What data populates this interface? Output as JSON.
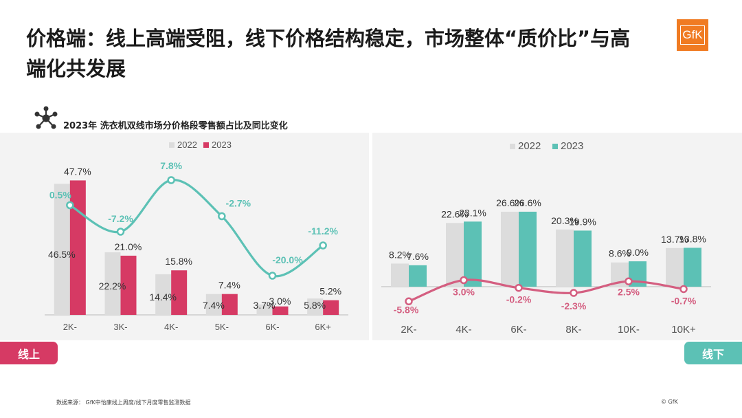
{
  "page": {
    "title": "价格端：线上高端受阻，线下价格结构稳定，市场整体“质价比”与高端化共发展",
    "subtitle": "2023年 洗衣机双线市场分价格段零售额占比及同比变化",
    "logo_text": "GfK",
    "source": "数据来源：  GfK中怡康线上周度/线下月度零售监测数据",
    "copyright": "© GfK",
    "online_tag": "线上",
    "offline_tag": "线下",
    "icon": "network-icon"
  },
  "chart_data": [
    {
      "type": "bar",
      "panel": "线上",
      "categories": [
        "2K-",
        "3K-",
        "4K-",
        "5K-",
        "6K-",
        "6K+"
      ],
      "series": [
        {
          "name": "2022",
          "values": [
            46.5,
            22.2,
            14.4,
            7.4,
            3.7,
            5.8
          ],
          "labels": [
            "46.5%",
            "22.2%",
            "14.4%",
            "7.4%",
            "3.7%",
            "5.8%"
          ],
          "color": "#dcdcdc"
        },
        {
          "name": "2023",
          "values": [
            47.7,
            21.0,
            15.8,
            7.4,
            3.0,
            5.2
          ],
          "labels": [
            "47.7%",
            "21.0%",
            "15.8%",
            "7.4%",
            "3.0%",
            "5.2%"
          ],
          "color": "#d63a64"
        }
      ],
      "yoy": {
        "values": [
          0.5,
          -7.2,
          7.8,
          -2.7,
          -20.0,
          -11.2
        ],
        "labels": [
          "0.5%",
          "-7.2%",
          "7.8%",
          "-2.7%",
          "-20.0%",
          "-11.2%"
        ],
        "color": "#5cc1b5"
      },
      "legend": "top-center"
    },
    {
      "type": "bar",
      "panel": "线下",
      "categories": [
        "2K-",
        "4K-",
        "6K-",
        "8K-",
        "10K-",
        "10K+"
      ],
      "series": [
        {
          "name": "2022",
          "values": [
            8.2,
            22.6,
            26.6,
            20.3,
            8.6,
            13.7
          ],
          "labels": [
            "8.2%",
            "22.6%",
            "26.6%",
            "20.3%",
            "8.6%",
            "13.7%"
          ],
          "color": "#dcdcdc"
        },
        {
          "name": "2023",
          "values": [
            7.6,
            23.1,
            26.6,
            19.9,
            9.0,
            13.8
          ],
          "labels": [
            "7.6%",
            "23.1%",
            "26.6%",
            "19.9%",
            "9.0%",
            "13.8%"
          ],
          "color": "#5cc1b5"
        }
      ],
      "yoy": {
        "values": [
          -5.8,
          3.0,
          -0.2,
          -2.3,
          2.5,
          -0.7
        ],
        "labels": [
          "-5.8%",
          "3.0%",
          "-0.2%",
          "-2.3%",
          "2.5%",
          "-0.7%"
        ],
        "color": "#d45e80"
      },
      "legend": "top-center"
    }
  ]
}
